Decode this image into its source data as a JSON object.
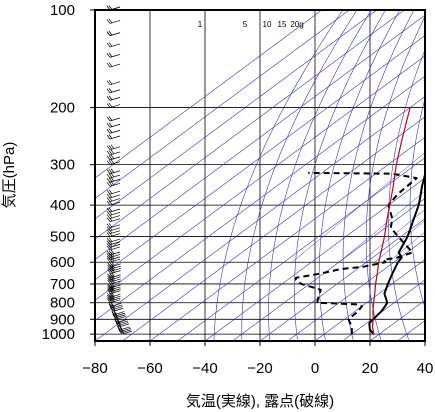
{
  "chart_data": {
    "type": "skew-t log-p sounding",
    "xlabel": "気温(実線), 露点(破線)",
    "ylabel": "気圧(hPa)",
    "xlim": [
      -80,
      40
    ],
    "plim": [
      1050,
      100
    ],
    "x_ticks": [
      "−80",
      "−60",
      "−40",
      "−20",
      "0",
      "20",
      "40"
    ],
    "x_tick_values": [
      -80,
      -60,
      -40,
      -20,
      0,
      20,
      40
    ],
    "p_ticks": [
      "100",
      "200",
      "300",
      "400",
      "500",
      "600",
      "700",
      "800",
      "900",
      "1000"
    ],
    "p_tick_values": [
      100,
      200,
      300,
      400,
      500,
      600,
      700,
      800,
      900,
      1000
    ],
    "mixing_ratio_labels": [
      "1",
      "5",
      "10",
      "15",
      "20g"
    ],
    "mixing_ratio_values": [
      1,
      5,
      10,
      15,
      20
    ],
    "grid": true,
    "series": [
      {
        "kind": "temperature",
        "color": "#000000",
        "style": "solid",
        "points": [
          [
            1000,
            18
          ],
          [
            970,
            14.5
          ],
          [
            925,
            11
          ],
          [
            900,
            10.5
          ],
          [
            850,
            9.5
          ],
          [
            830,
            8.8
          ],
          [
            800,
            7.5
          ],
          [
            750,
            2
          ],
          [
            700,
            -1.5
          ],
          [
            650,
            -5
          ],
          [
            600,
            -8.5
          ],
          [
            580,
            -9.5
          ],
          [
            560,
            -13
          ],
          [
            500,
            -17.6
          ],
          [
            450,
            -23
          ],
          [
            400,
            -29
          ],
          [
            380,
            -32
          ],
          [
            350,
            -37
          ],
          [
            320,
            -42
          ],
          [
            300,
            -46
          ],
          [
            280,
            -47.5
          ],
          [
            250,
            -49
          ],
          [
            230,
            -50.5
          ],
          [
            200,
            -54
          ],
          [
            180,
            -55.5
          ],
          [
            150,
            -59
          ],
          [
            130,
            -60
          ],
          [
            100,
            -62
          ]
        ]
      },
      {
        "kind": "dewpoint",
        "color": "#000000",
        "style": "dashed",
        "points": [
          [
            1000,
            10
          ],
          [
            950,
            6.5
          ],
          [
            900,
            1.5
          ],
          [
            850,
            1
          ],
          [
            820,
            0
          ],
          [
            810,
            -2
          ],
          [
            800,
            -18
          ],
          [
            780,
            -19.5
          ],
          [
            730,
            -23
          ],
          [
            700,
            -33
          ],
          [
            680,
            -37
          ],
          [
            670,
            -38
          ],
          [
            650,
            -31
          ],
          [
            630,
            -26
          ],
          [
            620,
            -19
          ],
          [
            600,
            -13
          ],
          [
            590,
            -15
          ],
          [
            580,
            -11
          ],
          [
            560,
            -8
          ],
          [
            500,
            -21
          ],
          [
            470,
            -28
          ],
          [
            440,
            -32
          ],
          [
            400,
            -40
          ],
          [
            370,
            -42
          ],
          [
            330,
            -43
          ],
          [
            320,
            -54
          ],
          [
            318,
            -85
          ]
        ]
      },
      {
        "kind": "parcel",
        "color": "#cc0000",
        "style": "solid",
        "points": [
          [
            1000,
            18
          ],
          [
            950,
            14
          ],
          [
            900,
            10.5
          ],
          [
            850,
            6.5
          ],
          [
            800,
            2.5
          ],
          [
            750,
            -1.5
          ],
          [
            700,
            -6
          ],
          [
            650,
            -10.5
          ],
          [
            600,
            -15.5
          ],
          [
            550,
            -20.5
          ],
          [
            500,
            -26
          ],
          [
            450,
            -32.5
          ],
          [
            400,
            -39.5
          ],
          [
            350,
            -47.5
          ],
          [
            300,
            -57
          ],
          [
            250,
            -67.5
          ],
          [
            200,
            -80
          ]
        ]
      }
    ],
    "wind_barbs_note": "",
    "wind_profile": [
      {
        "p": 1000,
        "speed_kt": 15
      },
      {
        "p": 950,
        "speed_kt": 15
      },
      {
        "p": 900,
        "speed_kt": 20
      },
      {
        "p": 850,
        "speed_kt": 20
      },
      {
        "p": 800,
        "speed_kt": 25
      },
      {
        "p": 750,
        "speed_kt": 25
      },
      {
        "p": 700,
        "speed_kt": 30
      },
      {
        "p": 650,
        "speed_kt": 30
      },
      {
        "p": 600,
        "speed_kt": 25
      },
      {
        "p": 550,
        "speed_kt": 20
      },
      {
        "p": 500,
        "speed_kt": 20
      },
      {
        "p": 450,
        "speed_kt": 15
      },
      {
        "p": 400,
        "speed_kt": 20
      },
      {
        "p": 350,
        "speed_kt": 25
      },
      {
        "p": 300,
        "speed_kt": 25
      },
      {
        "p": 250,
        "speed_kt": 20
      },
      {
        "p": 200,
        "speed_kt": 20
      },
      {
        "p": 150,
        "speed_kt": 15
      },
      {
        "p": 120,
        "speed_kt": 15
      },
      {
        "p": 100,
        "speed_kt": 10
      }
    ],
    "colors": {
      "frame": "#000000",
      "grid": "#000000",
      "isotherm": "#3333cc",
      "parcel": "#cc0000"
    }
  }
}
